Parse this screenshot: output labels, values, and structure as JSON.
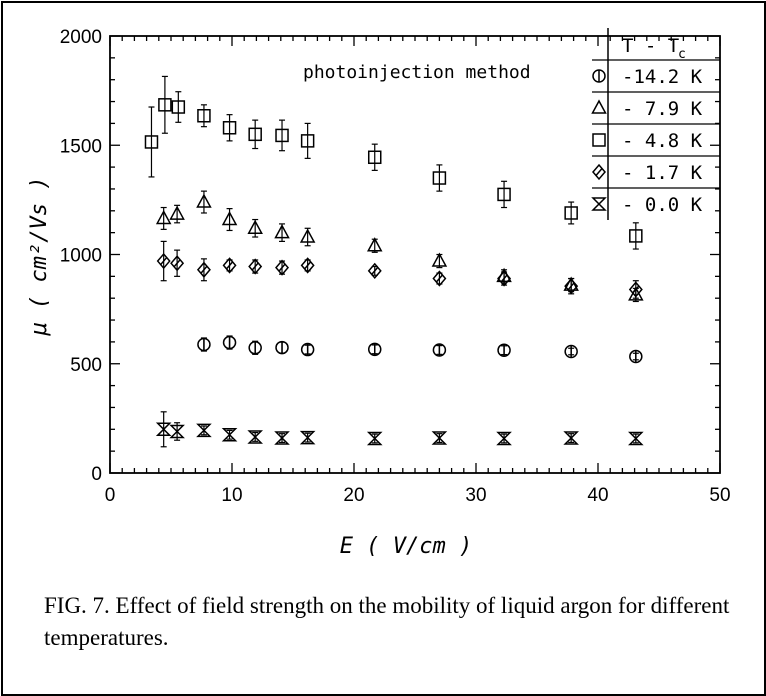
{
  "chart_data": {
    "type": "scatter",
    "annotation": "photoinjection method",
    "xlabel": "E ( V/cm )",
    "ylabel": "μ ( cm²/Vs )",
    "xlim": [
      0,
      50
    ],
    "ylim": [
      0,
      2000
    ],
    "xticks": [
      "0",
      "10",
      "20",
      "30",
      "40",
      "50"
    ],
    "yticks": [
      "0",
      "500",
      "1000",
      "1500",
      "2000"
    ],
    "grid": false,
    "legend_placement": "top-right",
    "legend_title": "T - T",
    "legend_title_sub": "c",
    "series": [
      {
        "name": "-14.2 K",
        "marker": "circle",
        "x": [
          7.7,
          9.8,
          11.9,
          14.1,
          16.2,
          21.7,
          27.0,
          32.3,
          37.8,
          43.1
        ],
        "y": [
          588,
          597,
          573,
          574,
          565,
          566,
          563,
          562,
          556,
          533
        ],
        "err": [
          30,
          30,
          30,
          25,
          20,
          20,
          20,
          20,
          15,
          15
        ]
      },
      {
        "name": "- 7.9 K",
        "marker": "triangle",
        "x": [
          4.4,
          5.5,
          7.7,
          9.8,
          11.9,
          14.1,
          16.2,
          21.7,
          27.0,
          32.3,
          37.8,
          43.1
        ],
        "y": [
          1165,
          1185,
          1240,
          1160,
          1120,
          1100,
          1080,
          1040,
          970,
          900,
          860,
          815
        ],
        "err": [
          50,
          40,
          50,
          50,
          40,
          40,
          40,
          30,
          30,
          30,
          30,
          30
        ]
      },
      {
        "name": "- 4.8 K",
        "marker": "square",
        "x": [
          3.4,
          4.5,
          5.6,
          7.7,
          9.8,
          11.9,
          14.1,
          16.2,
          21.7,
          27.0,
          32.3,
          37.8,
          43.1
        ],
        "y": [
          1515,
          1685,
          1675,
          1635,
          1580,
          1550,
          1545,
          1520,
          1445,
          1350,
          1275,
          1190,
          1085
        ],
        "err": [
          160,
          130,
          70,
          50,
          60,
          65,
          70,
          80,
          60,
          60,
          60,
          50,
          60
        ]
      },
      {
        "name": "- 1.7 K",
        "marker": "diamond",
        "x": [
          4.4,
          5.5,
          7.7,
          9.8,
          11.9,
          14.1,
          16.2,
          21.7,
          27.0,
          32.3,
          37.8,
          43.1
        ],
        "y": [
          970,
          960,
          930,
          950,
          945,
          940,
          950,
          925,
          890,
          890,
          855,
          840
        ],
        "err": [
          90,
          60,
          50,
          25,
          30,
          30,
          25,
          20,
          25,
          30,
          35,
          40
        ]
      },
      {
        "name": "- 0.0 K",
        "marker": "hourglass",
        "x": [
          4.4,
          5.5,
          7.7,
          9.8,
          11.9,
          14.1,
          16.2,
          21.7,
          27.0,
          32.3,
          37.8,
          43.1
        ],
        "y": [
          200,
          190,
          195,
          175,
          165,
          160,
          162,
          158,
          160,
          158,
          160,
          158
        ],
        "err": [
          80,
          40,
          20,
          20,
          20,
          20,
          20,
          20,
          20,
          20,
          20,
          20
        ]
      }
    ]
  },
  "caption": "FIG. 7. Effect of field strength on the mobility of liquid argon for different temperatures."
}
